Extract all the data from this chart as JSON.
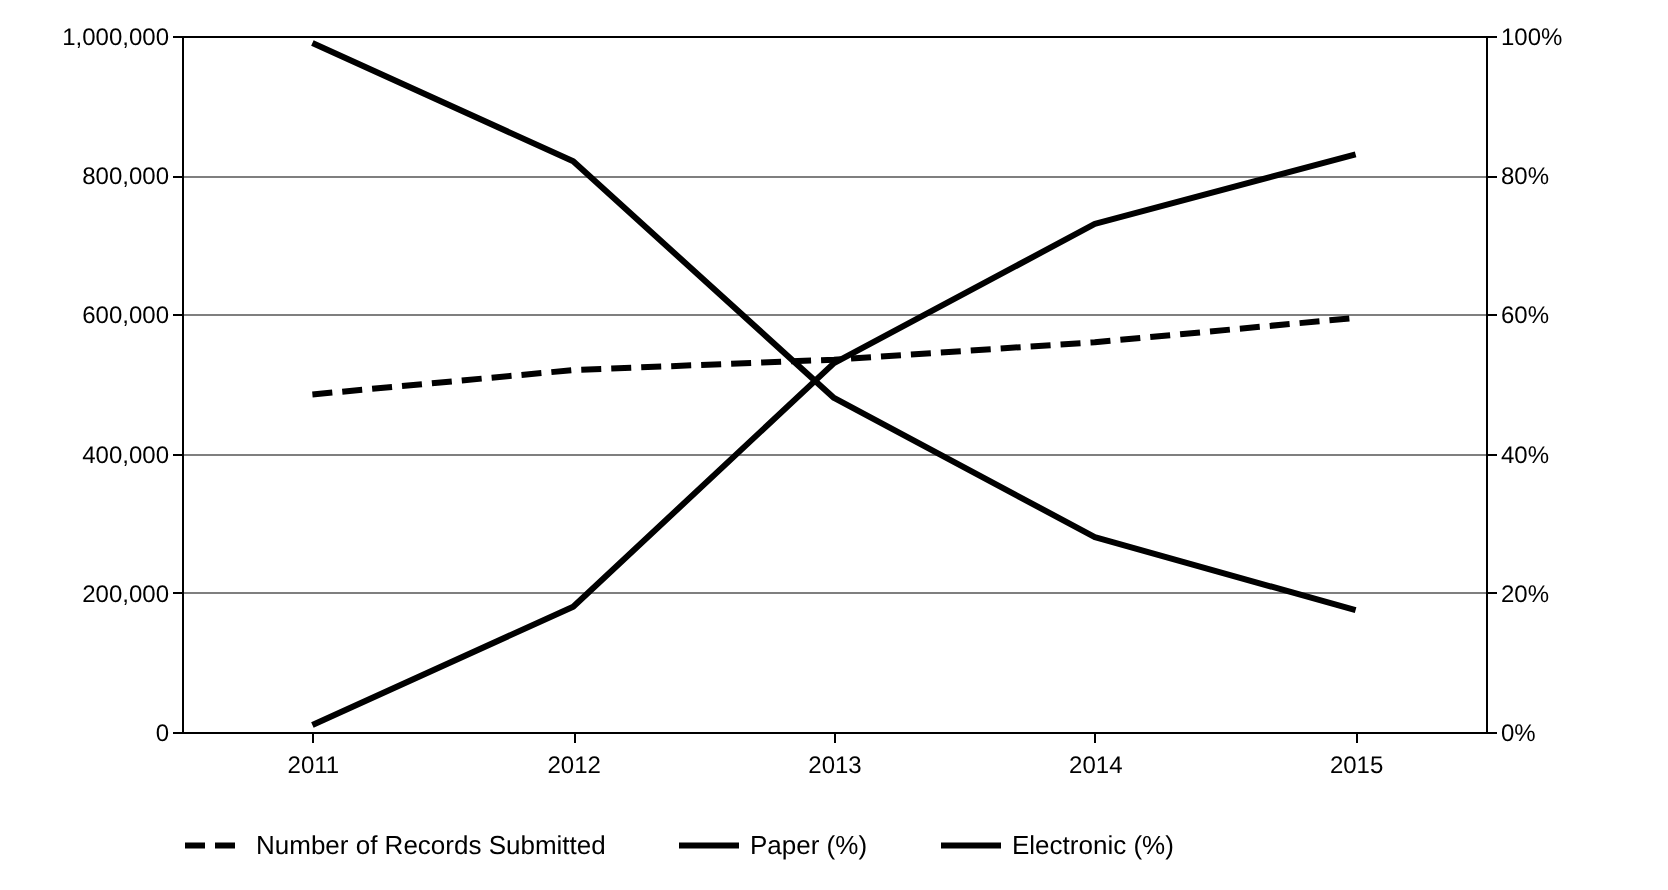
{
  "chart_data": {
    "type": "line",
    "categories": [
      "2011",
      "2012",
      "2013",
      "2014",
      "2015"
    ],
    "series": [
      {
        "name": "Number of Records Submitted",
        "color": "#000000",
        "line_style": "dashed",
        "values": [
          485000,
          520000,
          535000,
          560000,
          595000
        ]
      },
      {
        "name": "Paper (%)",
        "color": "#000000",
        "line_style": "solid",
        "axis": "y2",
        "values": [
          99,
          82,
          48,
          28,
          17.5
        ]
      },
      {
        "name": "Electronic (%)",
        "color": "#000000",
        "line_style": "solid",
        "axis": "y2",
        "values": [
          1,
          18,
          53,
          73,
          83
        ]
      }
    ],
    "ylim": [
      0,
      1000000
    ],
    "yticks": [
      {
        "value": 0,
        "label": "0"
      },
      {
        "value": 200000,
        "label": "200,000"
      },
      {
        "value": 400000,
        "label": "400,000"
      },
      {
        "value": 600000,
        "label": "600,000"
      },
      {
        "value": 800000,
        "label": "800,000"
      },
      {
        "value": 1000000,
        "label": "1,000,000"
      }
    ],
    "y2lim": [
      0,
      100
    ],
    "y2ticks": [
      {
        "value": 0,
        "label": "0%"
      },
      {
        "value": 20,
        "label": "20%"
      },
      {
        "value": 40,
        "label": "40%"
      },
      {
        "value": 60,
        "label": "60%"
      },
      {
        "value": 80,
        "label": "80%"
      },
      {
        "value": 100,
        "label": "100%"
      }
    ],
    "grid": "y",
    "legend": "bottom",
    "marker": "none"
  }
}
